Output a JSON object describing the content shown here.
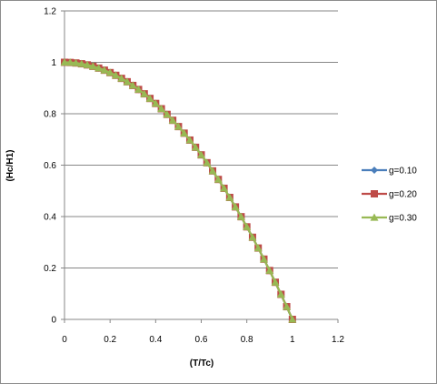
{
  "chart_data": {
    "type": "line",
    "title": "",
    "xlabel": "(T/Tc)",
    "ylabel": "(Hc/H1)",
    "xlim": [
      0,
      1.2
    ],
    "ylim": [
      0,
      1.2
    ],
    "x_ticks": [
      "0",
      "0.2",
      "0.4",
      "0.6",
      "0.8",
      "1",
      "1.2"
    ],
    "y_ticks": [
      "0",
      "0.2",
      "0.4",
      "0.6",
      "0.8",
      "1",
      "1.2"
    ],
    "grid": "horizontal major gridlines",
    "legend_position": "right",
    "x": [
      0,
      0.025,
      0.05,
      0.075,
      0.1,
      0.125,
      0.15,
      0.175,
      0.2,
      0.225,
      0.25,
      0.275,
      0.3,
      0.325,
      0.35,
      0.375,
      0.4,
      0.425,
      0.45,
      0.475,
      0.5,
      0.525,
      0.55,
      0.575,
      0.6,
      0.625,
      0.65,
      0.675,
      0.7,
      0.725,
      0.75,
      0.775,
      0.8,
      0.825,
      0.85,
      0.875,
      0.9,
      0.925,
      0.95,
      0.975,
      1.0
    ],
    "series": [
      {
        "name": "g=0.10",
        "color": "#4a7ebb",
        "marker": "diamond",
        "values": [
          1.0,
          0.9994,
          0.9975,
          0.9944,
          0.99,
          0.9844,
          0.9775,
          0.9694,
          0.96,
          0.9494,
          0.9375,
          0.9244,
          0.91,
          0.8944,
          0.8775,
          0.8594,
          0.84,
          0.8194,
          0.7975,
          0.7744,
          0.75,
          0.7244,
          0.6975,
          0.6694,
          0.64,
          0.6094,
          0.5775,
          0.5444,
          0.51,
          0.4744,
          0.4375,
          0.3994,
          0.36,
          0.3194,
          0.2775,
          0.2344,
          0.19,
          0.1444,
          0.0975,
          0.0494,
          0.0
        ]
      },
      {
        "name": "g=0.20",
        "color": "#be4b48",
        "marker": "square",
        "values": [
          1.0,
          0.9994,
          0.9975,
          0.9944,
          0.99,
          0.9844,
          0.9775,
          0.9694,
          0.96,
          0.9494,
          0.9375,
          0.9244,
          0.91,
          0.8944,
          0.8775,
          0.8594,
          0.84,
          0.8194,
          0.7975,
          0.7744,
          0.75,
          0.7244,
          0.6975,
          0.6694,
          0.64,
          0.6094,
          0.5775,
          0.5444,
          0.51,
          0.4744,
          0.4375,
          0.3994,
          0.36,
          0.3194,
          0.2775,
          0.2344,
          0.19,
          0.1444,
          0.0975,
          0.0494,
          0.0
        ]
      },
      {
        "name": "g=0.30",
        "color": "#98b954",
        "marker": "triangle",
        "values": [
          1.0,
          0.9994,
          0.9975,
          0.9944,
          0.99,
          0.9844,
          0.9775,
          0.9694,
          0.96,
          0.9494,
          0.9375,
          0.9244,
          0.91,
          0.8944,
          0.8775,
          0.8594,
          0.84,
          0.8194,
          0.7975,
          0.7744,
          0.75,
          0.7244,
          0.6975,
          0.6694,
          0.64,
          0.6094,
          0.5775,
          0.5444,
          0.51,
          0.4744,
          0.4375,
          0.3994,
          0.36,
          0.3194,
          0.2775,
          0.2344,
          0.19,
          0.1444,
          0.0975,
          0.0494,
          0.0
        ]
      }
    ]
  }
}
